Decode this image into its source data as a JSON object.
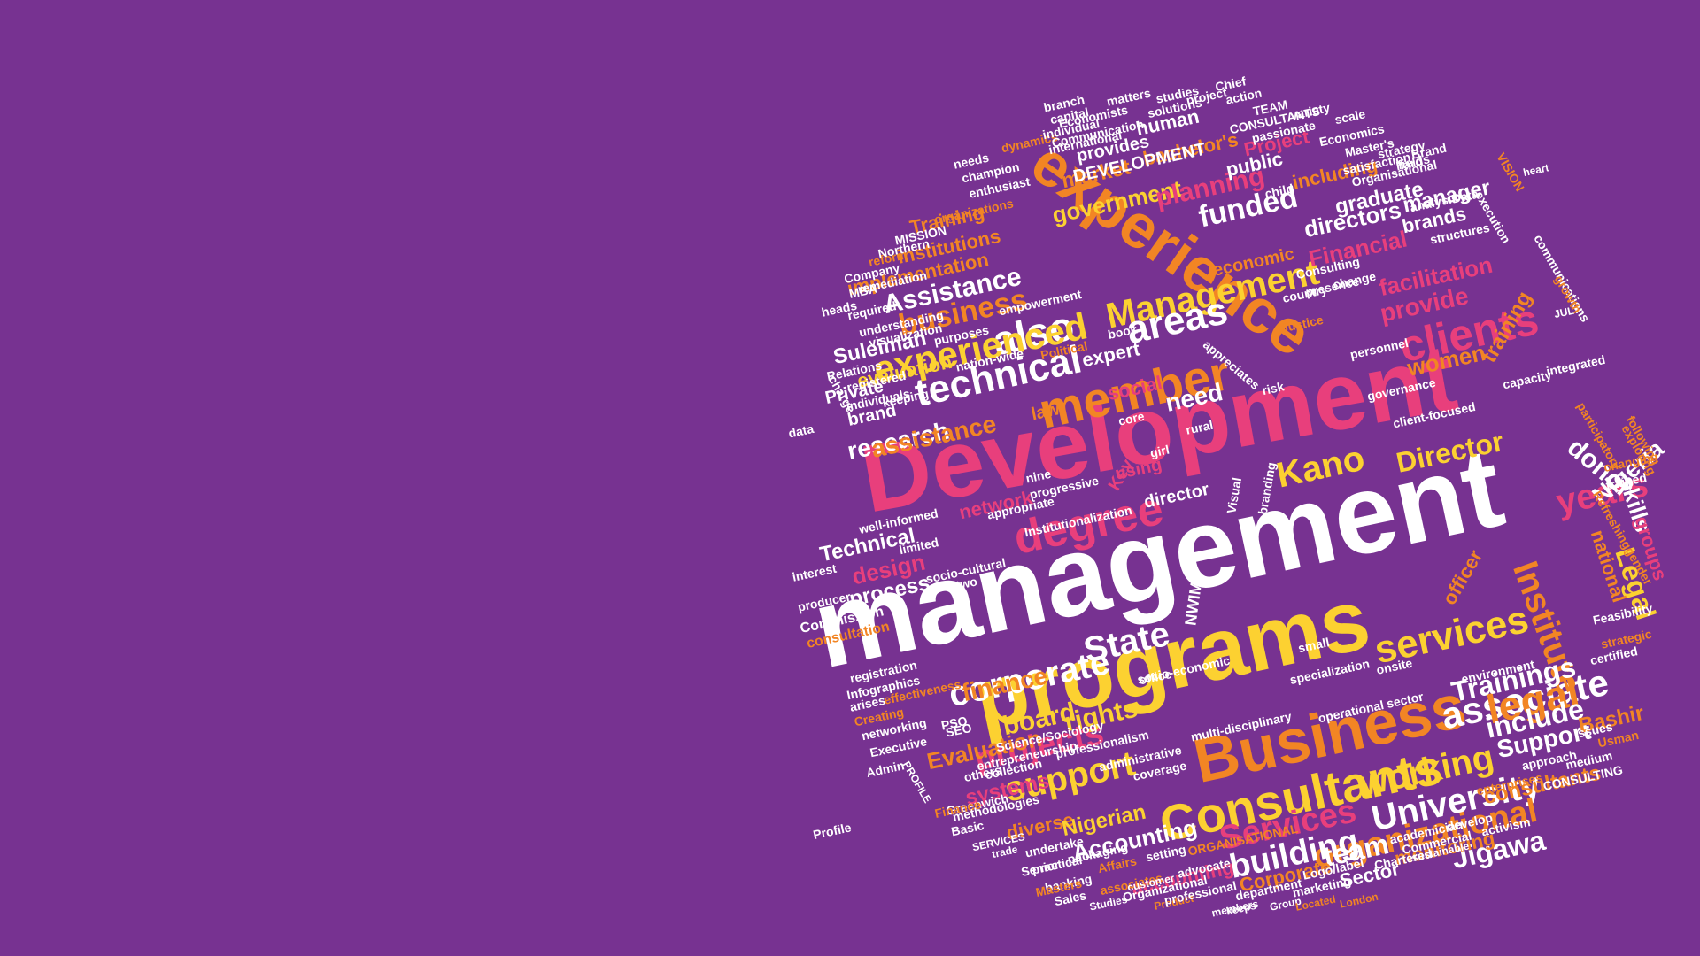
{
  "background_color": "#773291",
  "palette": {
    "white": "#ffffff",
    "pink": "#e83f7c",
    "yellow": "#fcd131",
    "orange": "#f28524",
    "magenta": "#c23b86"
  },
  "words": [
    {
      "text": "management",
      "color": "white"
    },
    {
      "text": "Development",
      "color": "pink"
    },
    {
      "text": "programs",
      "color": "yellow"
    },
    {
      "text": "experience",
      "color": "orange"
    },
    {
      "text": "Business",
      "color": "orange"
    },
    {
      "text": "Consultants",
      "color": "yellow"
    },
    {
      "text": "member",
      "color": "orange"
    },
    {
      "text": "degree",
      "color": "pink"
    },
    {
      "text": "services",
      "color": "yellow"
    },
    {
      "text": "associate",
      "color": "white"
    },
    {
      "text": "Management",
      "color": "yellow"
    },
    {
      "text": "also",
      "color": "white"
    },
    {
      "text": "technical",
      "color": "white"
    },
    {
      "text": "experienced",
      "color": "yellow"
    },
    {
      "text": "areas",
      "color": "white"
    },
    {
      "text": "clients",
      "color": "pink"
    },
    {
      "text": "Institute",
      "color": "orange"
    },
    {
      "text": "Legal",
      "color": "yellow"
    },
    {
      "text": "legal",
      "color": "orange"
    },
    {
      "text": "University",
      "color": "white"
    },
    {
      "text": "working",
      "color": "yellow"
    },
    {
      "text": "corporate",
      "color": "white"
    },
    {
      "text": "State",
      "color": "white"
    },
    {
      "text": "support",
      "color": "yellow"
    },
    {
      "text": "projects",
      "color": "pink"
    },
    {
      "text": "Services",
      "color": "pink"
    },
    {
      "text": "organizational",
      "color": "orange"
    },
    {
      "text": "building",
      "color": "white"
    },
    {
      "text": "team",
      "color": "white"
    },
    {
      "text": "Jigawa",
      "color": "white"
    },
    {
      "text": "Kano",
      "color": "yellow"
    },
    {
      "text": "years",
      "color": "pink"
    },
    {
      "text": "Director",
      "color": "yellow"
    },
    {
      "text": "Nigeria",
      "color": "white"
    },
    {
      "text": "donor",
      "color": "white"
    },
    {
      "text": "skills",
      "color": "white"
    },
    {
      "text": "national",
      "color": "orange"
    },
    {
      "text": "groups",
      "color": "pink"
    },
    {
      "text": "Trainings",
      "color": "white"
    },
    {
      "text": "include",
      "color": "white"
    },
    {
      "text": "Support",
      "color": "white"
    },
    {
      "text": "Bashir",
      "color": "orange"
    },
    {
      "text": "rights",
      "color": "yellow"
    },
    {
      "text": "board",
      "color": "yellow"
    },
    {
      "text": "finance",
      "color": "orange"
    },
    {
      "text": "Evaluation",
      "color": "orange"
    },
    {
      "text": "systems",
      "color": "pink"
    },
    {
      "text": "diverse",
      "color": "orange"
    },
    {
      "text": "Nigerian",
      "color": "yellow"
    },
    {
      "text": "Accounting",
      "color": "white"
    },
    {
      "text": "accounting",
      "color": "pink"
    },
    {
      "text": "Corporate",
      "color": "orange"
    },
    {
      "text": "Sector",
      "color": "white"
    },
    {
      "text": "monitoring",
      "color": "orange"
    },
    {
      "text": "consultants",
      "color": "orange"
    },
    {
      "text": "design",
      "color": "pink"
    },
    {
      "text": "process",
      "color": "white"
    },
    {
      "text": "Technical",
      "color": "white"
    },
    {
      "text": "network",
      "color": "pink"
    },
    {
      "text": "research",
      "color": "white"
    },
    {
      "text": "assistance",
      "color": "orange"
    },
    {
      "text": "brand",
      "color": "white"
    },
    {
      "text": "Private",
      "color": "white"
    },
    {
      "text": "evaluation",
      "color": "yellow"
    },
    {
      "text": "Suleiman",
      "color": "white"
    },
    {
      "text": "business",
      "color": "orange"
    },
    {
      "text": "Assistance",
      "color": "white"
    },
    {
      "text": "implementation",
      "color": "orange"
    },
    {
      "text": "institutions",
      "color": "orange"
    },
    {
      "text": "Training",
      "color": "orange"
    },
    {
      "text": "market",
      "color": "orange"
    },
    {
      "text": "government",
      "color": "yellow"
    },
    {
      "text": "planning",
      "color": "pink"
    },
    {
      "text": "funded",
      "color": "white"
    },
    {
      "text": "directors",
      "color": "white"
    },
    {
      "text": "Financial",
      "color": "pink"
    },
    {
      "text": "facilitation",
      "color": "pink"
    },
    {
      "text": "provide",
      "color": "pink"
    },
    {
      "text": "women",
      "color": "orange"
    },
    {
      "text": "training",
      "color": "orange"
    },
    {
      "text": "economic",
      "color": "orange"
    },
    {
      "text": "graduate",
      "color": "white"
    },
    {
      "text": "manager",
      "color": "white"
    },
    {
      "text": "brands",
      "color": "white"
    },
    {
      "text": "including",
      "color": "orange"
    },
    {
      "text": "public",
      "color": "white"
    },
    {
      "text": "Project",
      "color": "pink"
    },
    {
      "text": "bachelor's",
      "color": "orange"
    },
    {
      "text": "human",
      "color": "white"
    },
    {
      "text": "provides",
      "color": "white"
    },
    {
      "text": "DEVELOPMENT",
      "color": "white"
    },
    {
      "text": "need",
      "color": "white"
    },
    {
      "text": "social",
      "color": "pink"
    },
    {
      "text": "expert",
      "color": "white"
    },
    {
      "text": "law",
      "color": "orange"
    },
    {
      "text": "using",
      "color": "pink"
    },
    {
      "text": "director",
      "color": "white"
    },
    {
      "text": "Key",
      "color": "pink"
    },
    {
      "text": "officer",
      "color": "orange"
    },
    {
      "text": "NWIM",
      "color": "white"
    },
    {
      "text": "Commission",
      "color": "white"
    },
    {
      "text": "consultation",
      "color": "orange"
    },
    {
      "text": "producer",
      "color": "white"
    },
    {
      "text": "interest",
      "color": "white"
    },
    {
      "text": "Infographics",
      "color": "white"
    },
    {
      "text": "registration",
      "color": "white"
    },
    {
      "text": "networking",
      "color": "white"
    },
    {
      "text": "Executive",
      "color": "white"
    },
    {
      "text": "Creating",
      "color": "orange"
    },
    {
      "text": "Admin",
      "color": "white"
    },
    {
      "text": "PROFILE",
      "color": "white"
    },
    {
      "text": "Greenwich",
      "color": "white"
    },
    {
      "text": "Finance",
      "color": "orange"
    },
    {
      "text": "Basic",
      "color": "white"
    },
    {
      "text": "methodologies",
      "color": "white"
    },
    {
      "text": "SERVICES",
      "color": "white"
    },
    {
      "text": "trade",
      "color": "white"
    },
    {
      "text": "undertake",
      "color": "white"
    },
    {
      "text": "Senior",
      "color": "white"
    },
    {
      "text": "practical",
      "color": "white"
    },
    {
      "text": "banking",
      "color": "white"
    },
    {
      "text": "Sales",
      "color": "white"
    },
    {
      "text": "Masters",
      "color": "orange"
    },
    {
      "text": "Studies",
      "color": "white"
    },
    {
      "text": "associates",
      "color": "orange"
    },
    {
      "text": "customer",
      "color": "white"
    },
    {
      "text": "Product",
      "color": "orange"
    },
    {
      "text": "members",
      "color": "white"
    },
    {
      "text": "keeps",
      "color": "white"
    },
    {
      "text": "Group",
      "color": "white"
    },
    {
      "text": "Located",
      "color": "orange"
    },
    {
      "text": "London",
      "color": "orange"
    },
    {
      "text": "department",
      "color": "white"
    },
    {
      "text": "marketing",
      "color": "white"
    },
    {
      "text": "Logo/label",
      "color": "white"
    },
    {
      "text": "Chartered",
      "color": "white"
    },
    {
      "text": "Commercial",
      "color": "white"
    },
    {
      "text": "develop",
      "color": "white"
    },
    {
      "text": "academician",
      "color": "white"
    },
    {
      "text": "activism",
      "color": "white"
    },
    {
      "text": "sustainable",
      "color": "white"
    },
    {
      "text": "enterprises",
      "color": "orange"
    },
    {
      "text": "CONSULTING",
      "color": "white"
    },
    {
      "text": "approach",
      "color": "white"
    },
    {
      "text": "medium",
      "color": "white"
    },
    {
      "text": "Usman",
      "color": "orange"
    },
    {
      "text": "certified",
      "color": "white"
    },
    {
      "text": "environment",
      "color": "white"
    },
    {
      "text": "Feasibility",
      "color": "white"
    },
    {
      "text": "strategic",
      "color": "orange"
    },
    {
      "text": "gender",
      "color": "orange"
    },
    {
      "text": "Refreshing",
      "color": "orange"
    },
    {
      "text": "trained",
      "color": "white"
    },
    {
      "text": "changing",
      "color": "orange"
    },
    {
      "text": "exploring",
      "color": "orange"
    },
    {
      "text": "following",
      "color": "orange"
    },
    {
      "text": "participatory",
      "color": "orange"
    },
    {
      "text": "integrated",
      "color": "white"
    },
    {
      "text": "JULY",
      "color": "white"
    },
    {
      "text": "communications",
      "color": "white"
    },
    {
      "text": "growth",
      "color": "orange"
    },
    {
      "text": "VISION",
      "color": "orange"
    },
    {
      "text": "heart",
      "color": "white"
    },
    {
      "text": "execution",
      "color": "white"
    },
    {
      "text": "structures",
      "color": "white"
    },
    {
      "text": "Consulting",
      "color": "white"
    },
    {
      "text": "country",
      "color": "white"
    },
    {
      "text": "presence",
      "color": "white"
    },
    {
      "text": "change",
      "color": "white"
    },
    {
      "text": "personnel",
      "color": "white"
    },
    {
      "text": "Justice",
      "color": "orange"
    },
    {
      "text": "capacity",
      "color": "white"
    },
    {
      "text": "governance",
      "color": "white"
    },
    {
      "text": "core",
      "color": "white"
    },
    {
      "text": "rural",
      "color": "white"
    },
    {
      "text": "girl",
      "color": "white"
    },
    {
      "text": "nine",
      "color": "white"
    },
    {
      "text": "progressive",
      "color": "white"
    },
    {
      "text": "appropriate",
      "color": "white"
    },
    {
      "text": "Institutionalization",
      "color": "white"
    },
    {
      "text": "well-informed",
      "color": "white"
    },
    {
      "text": "limited",
      "color": "white"
    },
    {
      "text": "socio-cultural",
      "color": "white"
    },
    {
      "text": "socio-economic",
      "color": "white"
    },
    {
      "text": "office",
      "color": "white"
    },
    {
      "text": "specialization",
      "color": "white"
    },
    {
      "text": "onsite",
      "color": "white"
    },
    {
      "text": "multi-disciplinary",
      "color": "white"
    },
    {
      "text": "professionalism",
      "color": "white"
    },
    {
      "text": "administrative",
      "color": "white"
    },
    {
      "text": "coverage",
      "color": "white"
    },
    {
      "text": "entrepreneurship",
      "color": "white"
    },
    {
      "text": "effectiveness",
      "color": "orange"
    },
    {
      "text": "MBA",
      "color": "white"
    },
    {
      "text": "reform",
      "color": "orange"
    },
    {
      "text": "Northern",
      "color": "white"
    },
    {
      "text": "MISSION",
      "color": "white"
    },
    {
      "text": "organizations",
      "color": "orange"
    },
    {
      "text": "needs",
      "color": "white"
    },
    {
      "text": "champion",
      "color": "white"
    },
    {
      "text": "enthusiast",
      "color": "white"
    },
    {
      "text": "dynamics",
      "color": "orange"
    },
    {
      "text": "individual",
      "color": "white"
    },
    {
      "text": "international",
      "color": "white"
    },
    {
      "text": "Communication",
      "color": "white"
    },
    {
      "text": "Economists",
      "color": "white"
    },
    {
      "text": "solutions",
      "color": "white"
    },
    {
      "text": "project",
      "color": "white"
    },
    {
      "text": "branch",
      "color": "white"
    },
    {
      "text": "capital",
      "color": "white"
    },
    {
      "text": "matters",
      "color": "white"
    },
    {
      "text": "studies",
      "color": "white"
    },
    {
      "text": "Chief",
      "color": "white"
    },
    {
      "text": "action",
      "color": "white"
    },
    {
      "text": "TEAM",
      "color": "white"
    },
    {
      "text": "CONSULTANTS",
      "color": "white"
    },
    {
      "text": "passionate",
      "color": "white"
    },
    {
      "text": "variety",
      "color": "white"
    },
    {
      "text": "scale",
      "color": "white"
    },
    {
      "text": "Economics",
      "color": "white"
    },
    {
      "text": "Master's",
      "color": "white"
    },
    {
      "text": "satisfaction",
      "color": "white"
    },
    {
      "text": "strategy",
      "color": "white"
    },
    {
      "text": "Organisational",
      "color": "white"
    },
    {
      "text": "Brand",
      "color": "white"
    },
    {
      "text": "hard",
      "color": "white"
    },
    {
      "text": "fields",
      "color": "white"
    },
    {
      "text": "analysis",
      "color": "white"
    },
    {
      "text": "Data",
      "color": "white"
    },
    {
      "text": "Relations",
      "color": "white"
    },
    {
      "text": "registered",
      "color": "white"
    },
    {
      "text": "keeping",
      "color": "white"
    },
    {
      "text": "individuals",
      "color": "white"
    },
    {
      "text": "charge",
      "color": "white"
    },
    {
      "text": "data",
      "color": "white"
    },
    {
      "text": "heads",
      "color": "white"
    },
    {
      "text": "required",
      "color": "white"
    },
    {
      "text": "understanding",
      "color": "white"
    },
    {
      "text": "visualization",
      "color": "white"
    },
    {
      "text": "purposes",
      "color": "white"
    },
    {
      "text": "nation-wide",
      "color": "white"
    },
    {
      "text": "empowerment",
      "color": "white"
    },
    {
      "text": "Company",
      "color": "white"
    },
    {
      "text": "remediation",
      "color": "white"
    },
    {
      "text": "Political",
      "color": "orange"
    },
    {
      "text": "appreciates",
      "color": "white"
    },
    {
      "text": "book",
      "color": "white"
    },
    {
      "text": "child",
      "color": "white"
    },
    {
      "text": "client-focused",
      "color": "white"
    },
    {
      "text": "risk",
      "color": "white"
    },
    {
      "text": "Visual",
      "color": "white"
    },
    {
      "text": "branding",
      "color": "white"
    },
    {
      "text": "small",
      "color": "white"
    },
    {
      "text": "operational",
      "color": "white"
    },
    {
      "text": "sector",
      "color": "white"
    },
    {
      "text": "issues",
      "color": "white"
    },
    {
      "text": "packaging",
      "color": "white"
    },
    {
      "text": "advocate",
      "color": "white"
    },
    {
      "text": "Affairs",
      "color": "orange"
    },
    {
      "text": "ORGANISATIONAL",
      "color": "orange"
    },
    {
      "text": "two",
      "color": "white"
    },
    {
      "text": "Profile",
      "color": "white"
    },
    {
      "text": "SEO",
      "color": "white"
    },
    {
      "text": "Science/Sociology",
      "color": "white"
    },
    {
      "text": "PSO",
      "color": "white"
    },
    {
      "text": "others",
      "color": "white"
    },
    {
      "text": "collection",
      "color": "white"
    },
    {
      "text": "arises",
      "color": "white"
    },
    {
      "text": "setting",
      "color": "white"
    },
    {
      "text": "Organizational",
      "color": "white"
    },
    {
      "text": "professional",
      "color": "white"
    }
  ]
}
